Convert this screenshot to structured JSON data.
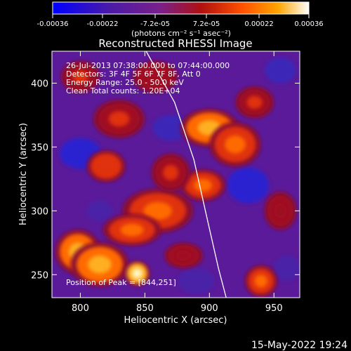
{
  "chart_data": {
    "type": "heatmap",
    "title": "Reconstructed RHESSI Image",
    "xlabel": "Heliocentric X (arcsec)",
    "ylabel": "Heliocentric Y (arcsec)",
    "xlim": [
      778,
      970
    ],
    "ylim": [
      232,
      425
    ],
    "x_ticks": [
      800,
      850,
      900,
      950
    ],
    "y_ticks": [
      250,
      300,
      350,
      400
    ],
    "colorbar": {
      "ticks": [
        -0.00036,
        -0.00022,
        -7.2e-05,
        7.2e-05,
        0.00022,
        0.00036
      ],
      "tick_labels": [
        "-0.00036",
        "-0.00022",
        "-7.2e-05",
        "7.2e-05",
        "0.00022",
        "0.00036"
      ],
      "range": [
        -0.00036,
        0.00036
      ],
      "unit_label": "(photons cm⁻² s⁻¹ asec⁻²)",
      "colors": [
        "#0000ff",
        "#4a1aa8",
        "#7a208a",
        "#b01010",
        "#ff5000",
        "#ffa500",
        "#ffffff"
      ]
    },
    "info_lines": [
      "26-Jul-2013 07:38:00.000 to 07:44:00.000",
      "Detectors: 3F 4F 5F 6F 7F 8F, Att 0",
      "Energy Range: 25.0 - 50.0 keV",
      "Clean     Total counts: 1.20E+04"
    ],
    "peak_label": "Position of Peak = [844,251]",
    "peak": [
      844,
      251
    ],
    "limb_curve": [
      [
        851,
        425
      ],
      [
        873,
        385
      ],
      [
        888,
        340
      ],
      [
        898,
        295
      ],
      [
        907,
        255
      ],
      [
        913,
        232
      ]
    ],
    "hot_regions": [
      {
        "x": 798,
        "y": 268,
        "rx": 14,
        "ry": 14,
        "level": 0.9
      },
      {
        "x": 815,
        "y": 258,
        "rx": 18,
        "ry": 14,
        "level": 0.85
      },
      {
        "x": 844,
        "y": 251,
        "rx": 8,
        "ry": 8,
        "level": 1.0
      },
      {
        "x": 860,
        "y": 300,
        "rx": 22,
        "ry": 14,
        "level": 0.8
      },
      {
        "x": 840,
        "y": 285,
        "rx": 18,
        "ry": 10,
        "level": 0.75
      },
      {
        "x": 820,
        "y": 335,
        "rx": 12,
        "ry": 10,
        "level": 0.7
      },
      {
        "x": 830,
        "y": 372,
        "rx": 16,
        "ry": 12,
        "level": 0.6
      },
      {
        "x": 900,
        "y": 365,
        "rx": 18,
        "ry": 12,
        "level": 0.85
      },
      {
        "x": 920,
        "y": 352,
        "rx": 16,
        "ry": 14,
        "level": 0.8
      },
      {
        "x": 895,
        "y": 320,
        "rx": 14,
        "ry": 10,
        "level": 0.75
      },
      {
        "x": 870,
        "y": 330,
        "rx": 12,
        "ry": 12,
        "level": 0.6
      },
      {
        "x": 935,
        "y": 385,
        "rx": 12,
        "ry": 10,
        "level": 0.65
      },
      {
        "x": 858,
        "y": 405,
        "rx": 14,
        "ry": 10,
        "level": 0.55
      },
      {
        "x": 800,
        "y": 405,
        "rx": 12,
        "ry": 10,
        "level": 0.6
      },
      {
        "x": 940,
        "y": 245,
        "rx": 10,
        "ry": 10,
        "level": 0.75
      },
      {
        "x": 955,
        "y": 300,
        "rx": 10,
        "ry": 12,
        "level": 0.55
      },
      {
        "x": 880,
        "y": 265,
        "rx": 12,
        "ry": 8,
        "level": 0.5
      }
    ],
    "cold_regions": [
      {
        "x": 800,
        "y": 345,
        "rx": 16,
        "ry": 12,
        "level": 0.9
      },
      {
        "x": 870,
        "y": 365,
        "rx": 14,
        "ry": 10,
        "level": 0.8
      },
      {
        "x": 930,
        "y": 320,
        "rx": 16,
        "ry": 14,
        "level": 0.85
      },
      {
        "x": 955,
        "y": 410,
        "rx": 12,
        "ry": 10,
        "level": 0.8
      },
      {
        "x": 890,
        "y": 245,
        "rx": 14,
        "ry": 10,
        "level": 0.7
      },
      {
        "x": 815,
        "y": 300,
        "rx": 10,
        "ry": 8,
        "level": 0.7
      },
      {
        "x": 960,
        "y": 255,
        "rx": 10,
        "ry": 10,
        "level": 0.6
      }
    ]
  },
  "footer": {
    "timestamp": "15-May-2022 19:24"
  }
}
